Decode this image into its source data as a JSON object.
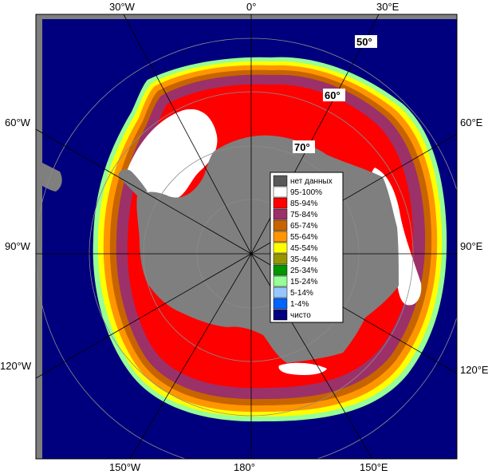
{
  "map": {
    "type": "polar stereographic sea-ice concentration map",
    "colors": {
      "open_water": "#00007e",
      "land": "#7f7f7f",
      "no_data": "#555555",
      "grid": "#8c8c8c"
    },
    "lon_labels": {
      "top_30w": "30°W",
      "top_0": "0°",
      "top_30e": "30°E",
      "left_60w": "60°W",
      "left_90w": "90°W",
      "left_120w": "120°W",
      "right_60e": "60°E",
      "right_90e": "90°E",
      "right_120e": "120°E",
      "bottom_150w": "150°W",
      "bottom_180": "180°",
      "bottom_150e": "150°E"
    },
    "lat_labels": {
      "lat50": "50°",
      "lat60": "60°",
      "lat70": "70°"
    }
  },
  "legend": {
    "items": [
      {
        "label": "нет данных",
        "color": "#595959"
      },
      {
        "label": "95-100%",
        "color": "#ffffff"
      },
      {
        "label": "85-94%",
        "color": "#ff0000"
      },
      {
        "label": "75-84%",
        "color": "#9b3168"
      },
      {
        "label": "65-74%",
        "color": "#c86400"
      },
      {
        "label": "55-64%",
        "color": "#ff9600"
      },
      {
        "label": "45-54%",
        "color": "#ffff00"
      },
      {
        "label": "35-44%",
        "color": "#969600"
      },
      {
        "label": "25-34%",
        "color": "#009600"
      },
      {
        "label": "15-24%",
        "color": "#96ff96"
      },
      {
        "label": "5-14%",
        "color": "#96c8ff"
      },
      {
        "label": "1-4%",
        "color": "#0064ff"
      },
      {
        "label": "чисто",
        "color": "#00007e"
      }
    ]
  }
}
